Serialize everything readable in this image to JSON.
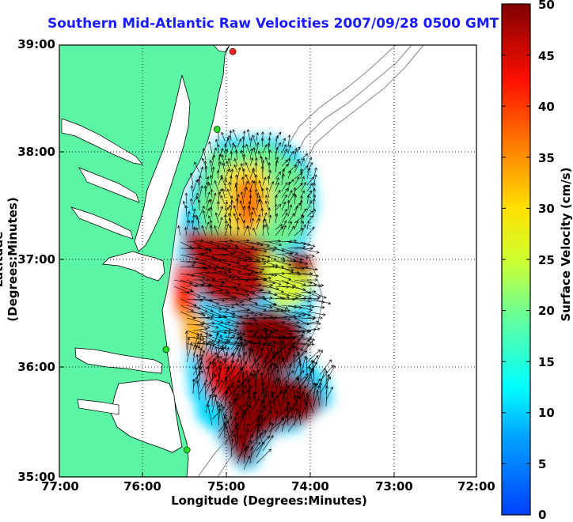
{
  "title": "Southern Mid-Atlantic Raw Velocities 2007/09/28 0500 GMT",
  "xlabel": "Longitude (Degrees:Minutes)",
  "ylabel": "Latitude (Degrees:Minutes)",
  "colorbar_label": "Surface Velocity (cm/s)",
  "x_ticks": [
    "77:00",
    "76:00",
    "75:00",
    "74:00",
    "73:00",
    "72:00"
  ],
  "y_ticks": [
    "39:00",
    "38:00",
    "37:00",
    "36:00",
    "35:00"
  ],
  "colorbar_ticks": [
    "50",
    "45",
    "40",
    "35",
    "30",
    "25",
    "20",
    "15",
    "10",
    "5",
    "0"
  ],
  "colors": {
    "land": "#5cf5a5",
    "ocean": "#ffffff",
    "coastline": "#000000",
    "bathymetry": "#8c8c8c",
    "title": "#1a1aff",
    "station": "#22dd22"
  },
  "map": {
    "lon_range": [
      -77.0,
      -72.0
    ],
    "lat_range": [
      35.0,
      39.0
    ],
    "colorbar_range_cm_s": [
      0,
      50
    ],
    "grid": "dotted",
    "stations": [
      {
        "lon": -74.92,
        "lat": 38.94,
        "color": "#ff2020"
      },
      {
        "lon": -75.11,
        "lat": 38.22,
        "color": "#22dd22"
      },
      {
        "lon": -75.72,
        "lat": 36.18,
        "color": "#22dd22"
      },
      {
        "lon": -75.47,
        "lat": 35.25,
        "color": "#22dd22"
      }
    ]
  }
}
